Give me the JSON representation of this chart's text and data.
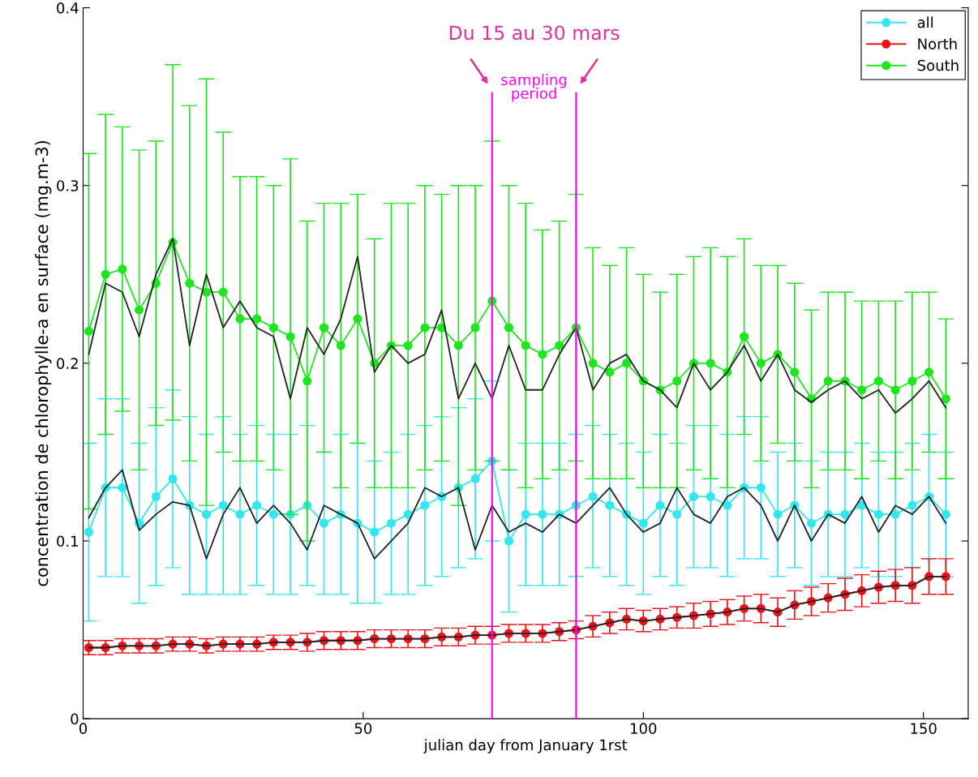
{
  "chart_data": {
    "type": "line",
    "xlabel": "julian day from January 1rst",
    "ylabel": "concentration de chlorophylle-a en surface (mg.m-3)",
    "x": [
      1,
      4,
      7,
      10,
      13,
      16,
      19,
      22,
      25,
      28,
      31,
      34,
      37,
      40,
      43,
      46,
      49,
      52,
      55,
      58,
      61,
      64,
      67,
      70,
      73,
      76,
      79,
      82,
      85,
      88,
      91,
      94,
      97,
      100,
      103,
      106,
      109,
      112,
      115,
      118,
      121,
      124,
      127,
      130,
      133,
      136,
      139,
      142,
      145,
      148,
      151,
      154
    ],
    "xlim": [
      0,
      158
    ],
    "ylim": [
      0,
      0.4
    ],
    "xticks": [
      0,
      50,
      100,
      150
    ],
    "yticks": [
      0,
      0.1,
      0.2,
      0.3,
      0.4
    ],
    "grid": false,
    "legend": "top right",
    "series": [
      {
        "name": "all",
        "color": "#33e6f0",
        "marker": "circle",
        "values": [
          0.105,
          0.13,
          0.13,
          0.11,
          0.125,
          0.135,
          0.12,
          0.115,
          0.12,
          0.115,
          0.12,
          0.115,
          0.115,
          0.12,
          0.11,
          0.115,
          0.11,
          0.105,
          0.11,
          0.115,
          0.12,
          0.125,
          0.13,
          0.135,
          0.145,
          0.1,
          0.115,
          0.115,
          0.115,
          0.12,
          0.125,
          0.12,
          0.115,
          0.11,
          0.12,
          0.115,
          0.125,
          0.125,
          0.12,
          0.13,
          0.13,
          0.115,
          0.12,
          0.11,
          0.115,
          0.115,
          0.12,
          0.115,
          0.115,
          0.12,
          0.125,
          0.115
        ],
        "errors": [
          0.05,
          0.05,
          0.05,
          0.045,
          0.05,
          0.05,
          0.05,
          0.045,
          0.05,
          0.045,
          0.045,
          0.045,
          0.045,
          0.045,
          0.04,
          0.045,
          0.045,
          0.04,
          0.04,
          0.045,
          0.045,
          0.045,
          0.045,
          0.045,
          0.045,
          0.04,
          0.04,
          0.04,
          0.04,
          0.04,
          0.04,
          0.04,
          0.04,
          0.04,
          0.04,
          0.04,
          0.04,
          0.04,
          0.04,
          0.04,
          0.04,
          0.035,
          0.035,
          0.035,
          0.035,
          0.035,
          0.035,
          0.035,
          0.035,
          0.035,
          0.035,
          0.035
        ]
      },
      {
        "name": "North",
        "color": "#e8141c",
        "marker": "circle",
        "values": [
          0.04,
          0.04,
          0.041,
          0.041,
          0.041,
          0.042,
          0.042,
          0.041,
          0.042,
          0.042,
          0.042,
          0.043,
          0.043,
          0.043,
          0.044,
          0.044,
          0.044,
          0.045,
          0.045,
          0.045,
          0.045,
          0.046,
          0.046,
          0.047,
          0.047,
          0.048,
          0.048,
          0.048,
          0.049,
          0.05,
          0.052,
          0.054,
          0.056,
          0.055,
          0.056,
          0.057,
          0.058,
          0.059,
          0.06,
          0.062,
          0.062,
          0.06,
          0.064,
          0.066,
          0.068,
          0.07,
          0.072,
          0.074,
          0.075,
          0.075,
          0.08,
          0.08
        ],
        "errors": [
          0.004,
          0.004,
          0.004,
          0.004,
          0.004,
          0.004,
          0.004,
          0.004,
          0.004,
          0.004,
          0.004,
          0.004,
          0.004,
          0.005,
          0.005,
          0.005,
          0.005,
          0.005,
          0.005,
          0.005,
          0.005,
          0.005,
          0.005,
          0.005,
          0.005,
          0.005,
          0.005,
          0.005,
          0.005,
          0.005,
          0.006,
          0.006,
          0.006,
          0.006,
          0.006,
          0.006,
          0.007,
          0.007,
          0.007,
          0.007,
          0.008,
          0.008,
          0.008,
          0.008,
          0.008,
          0.009,
          0.009,
          0.009,
          0.009,
          0.01,
          0.01,
          0.01
        ]
      },
      {
        "name": "South",
        "color": "#1ee61e",
        "marker": "circle",
        "values": [
          0.218,
          0.25,
          0.253,
          0.23,
          0.245,
          0.268,
          0.245,
          0.24,
          0.24,
          0.225,
          0.225,
          0.22,
          0.215,
          0.19,
          0.22,
          0.21,
          0.225,
          0.2,
          0.21,
          0.21,
          0.22,
          0.22,
          0.21,
          0.22,
          0.235,
          0.22,
          0.21,
          0.205,
          0.21,
          0.22,
          0.2,
          0.195,
          0.2,
          0.19,
          0.185,
          0.19,
          0.2,
          0.2,
          0.195,
          0.215,
          0.2,
          0.205,
          0.195,
          0.18,
          0.19,
          0.19,
          0.185,
          0.19,
          0.185,
          0.19,
          0.195,
          0.18
        ],
        "errors": [
          0.1,
          0.09,
          0.08,
          0.09,
          0.08,
          0.1,
          0.1,
          0.12,
          0.09,
          0.08,
          0.08,
          0.08,
          0.1,
          0.09,
          0.07,
          0.08,
          0.07,
          0.07,
          0.08,
          0.08,
          0.08,
          0.075,
          0.09,
          0.08,
          0.09,
          0.08,
          0.08,
          0.07,
          0.07,
          0.075,
          0.065,
          0.06,
          0.065,
          0.06,
          0.055,
          0.06,
          0.06,
          0.065,
          0.065,
          0.055,
          0.055,
          0.05,
          0.05,
          0.05,
          0.05,
          0.05,
          0.05,
          0.045,
          0.05,
          0.05,
          0.045,
          0.045
        ]
      },
      {
        "color": "#222222",
        "marker": "none",
        "values": [
          0.113,
          0.13,
          0.14,
          0.106,
          0.115,
          0.122,
          0.12,
          0.09,
          0.115,
          0.13,
          0.11,
          0.12,
          0.11,
          0.095,
          0.12,
          0.115,
          0.11,
          0.09,
          0.1,
          0.11,
          0.13,
          0.125,
          0.13,
          0.095,
          0.12,
          0.105,
          0.11,
          0.105,
          0.115,
          0.11,
          0.12,
          0.13,
          0.115,
          0.105,
          0.11,
          0.13,
          0.115,
          0.11,
          0.125,
          0.13,
          0.12,
          0.1,
          0.12,
          0.1,
          0.115,
          0.11,
          0.125,
          0.105,
          0.12,
          0.115,
          0.125,
          0.11
        ]
      },
      {
        "color": "#222222",
        "marker": "none",
        "values": [
          0.04,
          0.04,
          0.041,
          0.041,
          0.041,
          0.042,
          0.042,
          0.041,
          0.042,
          0.042,
          0.042,
          0.043,
          0.043,
          0.043,
          0.044,
          0.044,
          0.044,
          0.045,
          0.045,
          0.045,
          0.045,
          0.046,
          0.046,
          0.047,
          0.047,
          0.048,
          0.048,
          0.048,
          0.049,
          0.05,
          0.052,
          0.054,
          0.056,
          0.055,
          0.056,
          0.057,
          0.058,
          0.059,
          0.06,
          0.062,
          0.062,
          0.06,
          0.064,
          0.066,
          0.068,
          0.07,
          0.072,
          0.074,
          0.075,
          0.075,
          0.08,
          0.08
        ]
      },
      {
        "color": "#222222",
        "marker": "none",
        "values": [
          0.205,
          0.245,
          0.24,
          0.215,
          0.25,
          0.27,
          0.21,
          0.25,
          0.22,
          0.235,
          0.22,
          0.215,
          0.18,
          0.22,
          0.205,
          0.225,
          0.26,
          0.195,
          0.21,
          0.2,
          0.205,
          0.23,
          0.18,
          0.2,
          0.18,
          0.21,
          0.185,
          0.185,
          0.205,
          0.22,
          0.185,
          0.2,
          0.205,
          0.19,
          0.185,
          0.175,
          0.2,
          0.185,
          0.195,
          0.21,
          0.19,
          0.205,
          0.185,
          0.178,
          0.185,
          0.19,
          0.18,
          0.185,
          0.172,
          0.18,
          0.19,
          0.175
        ]
      }
    ],
    "ref_lines": [
      {
        "axis": "x",
        "value": 73,
        "color": "#ff00ff"
      },
      {
        "axis": "x",
        "value": 88,
        "color": "#ff00ff"
      }
    ],
    "annotations": [
      "Du 15 au 30 mars",
      "sampling\nperiod"
    ]
  }
}
